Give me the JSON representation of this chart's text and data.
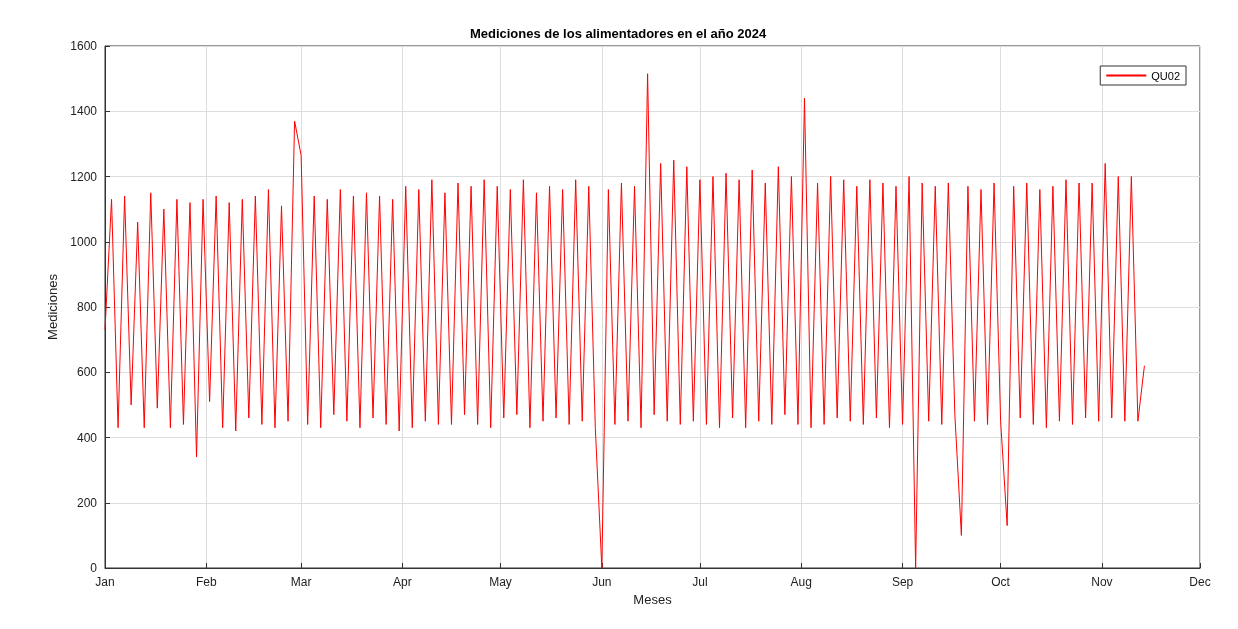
{
  "chart_data": {
    "type": "line",
    "title": "Mediciones de los alimentadores en el año 2024",
    "xlabel": "Meses",
    "ylabel": "Mediciones",
    "xlim": [
      "2024-01-01",
      "2024-12-01"
    ],
    "xticks": [
      {
        "value": "2024-01-01",
        "label": "Jan"
      },
      {
        "value": "2024-02-01",
        "label": "Feb"
      },
      {
        "value": "2024-03-01",
        "label": "Mar"
      },
      {
        "value": "2024-04-01",
        "label": "Apr"
      },
      {
        "value": "2024-05-01",
        "label": "May"
      },
      {
        "value": "2024-06-01",
        "label": "Jun"
      },
      {
        "value": "2024-07-01",
        "label": "Jul"
      },
      {
        "value": "2024-08-01",
        "label": "Aug"
      },
      {
        "value": "2024-09-01",
        "label": "Sep"
      },
      {
        "value": "2024-10-01",
        "label": "Oct"
      },
      {
        "value": "2024-11-01",
        "label": "Nov"
      },
      {
        "value": "2024-12-01",
        "label": "Dec"
      }
    ],
    "ylim": [
      0,
      1600
    ],
    "yticks": [
      0,
      200,
      400,
      600,
      800,
      1000,
      1200,
      1400,
      1600
    ],
    "grid": true,
    "legend": "top right",
    "marker": "none",
    "line_style": "solid",
    "series": [
      {
        "name": "QU02",
        "color": "#ff0000",
        "x": [
          "2024-01-01",
          "2024-01-03",
          "2024-01-05",
          "2024-01-07",
          "2024-01-09",
          "2024-01-11",
          "2024-01-13",
          "2024-01-15",
          "2024-01-17",
          "2024-01-19",
          "2024-01-21",
          "2024-01-23",
          "2024-01-25",
          "2024-01-27",
          "2024-01-29",
          "2024-01-31",
          "2024-02-02",
          "2024-02-04",
          "2024-02-06",
          "2024-02-08",
          "2024-02-10",
          "2024-02-12",
          "2024-02-14",
          "2024-02-16",
          "2024-02-18",
          "2024-02-20",
          "2024-02-22",
          "2024-02-24",
          "2024-02-26",
          "2024-02-28",
          "2024-03-01",
          "2024-03-03",
          "2024-03-05",
          "2024-03-07",
          "2024-03-09",
          "2024-03-11",
          "2024-03-13",
          "2024-03-15",
          "2024-03-17",
          "2024-03-19",
          "2024-03-21",
          "2024-03-23",
          "2024-03-25",
          "2024-03-27",
          "2024-03-29",
          "2024-03-31",
          "2024-04-02",
          "2024-04-04",
          "2024-04-06",
          "2024-04-08",
          "2024-04-10",
          "2024-04-12",
          "2024-04-14",
          "2024-04-16",
          "2024-04-18",
          "2024-04-20",
          "2024-04-22",
          "2024-04-24",
          "2024-04-26",
          "2024-04-28",
          "2024-04-30",
          "2024-05-02",
          "2024-05-04",
          "2024-05-06",
          "2024-05-08",
          "2024-05-10",
          "2024-05-12",
          "2024-05-14",
          "2024-05-16",
          "2024-05-18",
          "2024-05-20",
          "2024-05-22",
          "2024-05-24",
          "2024-05-26",
          "2024-05-28",
          "2024-05-30",
          "2024-06-01",
          "2024-06-03",
          "2024-06-05",
          "2024-06-07",
          "2024-06-09",
          "2024-06-11",
          "2024-06-13",
          "2024-06-15",
          "2024-06-17",
          "2024-06-19",
          "2024-06-21",
          "2024-06-23",
          "2024-06-25",
          "2024-06-27",
          "2024-06-29",
          "2024-07-01",
          "2024-07-03",
          "2024-07-05",
          "2024-07-07",
          "2024-07-09",
          "2024-07-11",
          "2024-07-13",
          "2024-07-15",
          "2024-07-17",
          "2024-07-19",
          "2024-07-21",
          "2024-07-23",
          "2024-07-25",
          "2024-07-27",
          "2024-07-29",
          "2024-07-31",
          "2024-08-02",
          "2024-08-04",
          "2024-08-06",
          "2024-08-08",
          "2024-08-10",
          "2024-08-12",
          "2024-08-14",
          "2024-08-16",
          "2024-08-18",
          "2024-08-20",
          "2024-08-22",
          "2024-08-24",
          "2024-08-26",
          "2024-08-28",
          "2024-08-30",
          "2024-09-01",
          "2024-09-03",
          "2024-09-05",
          "2024-09-07",
          "2024-09-09",
          "2024-09-11",
          "2024-09-13",
          "2024-09-15",
          "2024-09-17",
          "2024-09-19",
          "2024-09-21",
          "2024-09-23",
          "2024-09-25",
          "2024-09-27",
          "2024-09-29",
          "2024-10-01",
          "2024-10-03",
          "2024-10-05",
          "2024-10-07",
          "2024-10-09",
          "2024-10-11",
          "2024-10-13",
          "2024-10-15",
          "2024-10-17",
          "2024-10-19",
          "2024-10-21",
          "2024-10-23",
          "2024-10-25",
          "2024-10-27",
          "2024-10-29",
          "2024-10-31",
          "2024-11-02",
          "2024-11-04",
          "2024-11-06",
          "2024-11-08",
          "2024-11-10",
          "2024-11-12",
          "2024-11-14"
        ],
        "values": [
          730,
          1130,
          430,
          1140,
          500,
          1060,
          430,
          1150,
          490,
          1100,
          430,
          1130,
          440,
          1120,
          340,
          1130,
          510,
          1140,
          430,
          1120,
          420,
          1130,
          460,
          1140,
          440,
          1160,
          430,
          1110,
          450,
          1370,
          1265,
          440,
          1140,
          430,
          1130,
          470,
          1160,
          450,
          1140,
          430,
          1150,
          460,
          1140,
          440,
          1130,
          420,
          1170,
          430,
          1160,
          450,
          1190,
          440,
          1150,
          440,
          1180,
          470,
          1170,
          440,
          1190,
          430,
          1170,
          460,
          1160,
          470,
          1190,
          430,
          1150,
          450,
          1170,
          460,
          1160,
          440,
          1190,
          450,
          1170,
          430,
          0,
          1160,
          440,
          1180,
          450,
          1170,
          430,
          1515,
          470,
          1240,
          450,
          1250,
          440,
          1230,
          450,
          1190,
          440,
          1200,
          430,
          1210,
          460,
          1190,
          430,
          1220,
          450,
          1180,
          440,
          1230,
          470,
          1200,
          440,
          1440,
          430,
          1180,
          440,
          1200,
          460,
          1190,
          450,
          1170,
          440,
          1190,
          460,
          1180,
          430,
          1170,
          440,
          1200,
          0,
          1180,
          450,
          1170,
          440,
          1180,
          470,
          100,
          1170,
          450,
          1160,
          440,
          1180,
          450,
          130,
          1170,
          460,
          1180,
          440,
          1160,
          430,
          1170,
          450,
          1190,
          440,
          1180,
          460,
          1180,
          450,
          1240,
          460,
          1200,
          450,
          1200,
          450,
          620
        ]
      }
    ]
  }
}
